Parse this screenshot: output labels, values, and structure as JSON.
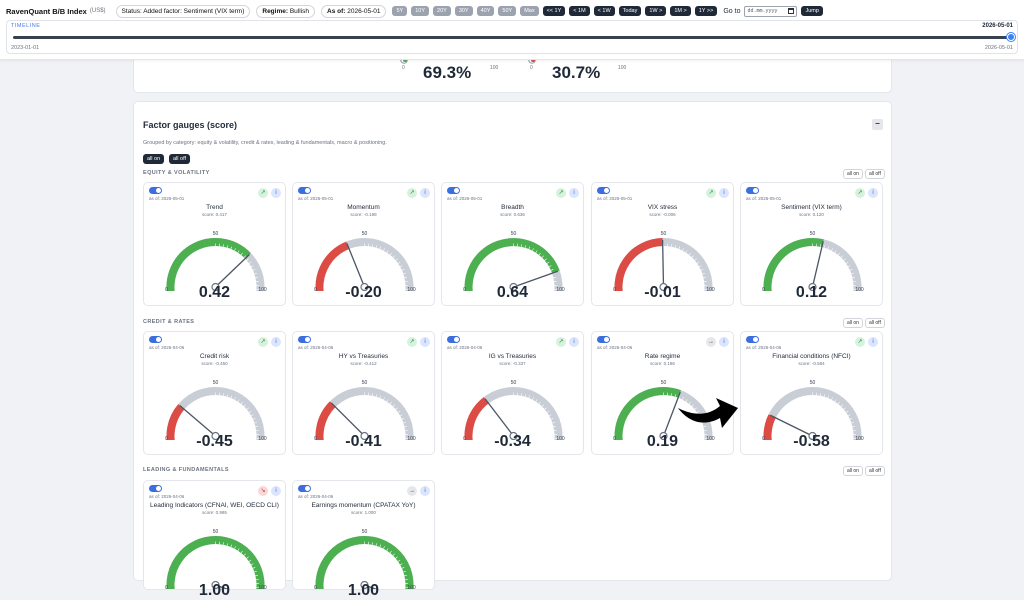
{
  "header": {
    "app_title": "RavenQuant B/B Index",
    "app_sub": "(US$)",
    "status": "Status: Added factor: Sentiment (VIX term)",
    "regime_label": "Regime:",
    "regime_value": "Bullish",
    "asof_label": "As of:",
    "asof_value": "2026-05-01",
    "ranges": [
      "5Y",
      "10Y",
      "20Y",
      "30Y",
      "40Y",
      "50Y",
      "Max"
    ],
    "nav": [
      "<< 1Y",
      "< 1M",
      "< 1W",
      "Today",
      "1W >",
      "1M >",
      "1Y >>"
    ],
    "goto_label": "Go to",
    "date_placeholder": "dd.mm.yyyy",
    "jump_label": "Jump"
  },
  "timeline": {
    "label": "TIMELINE",
    "current": "2026-05-01",
    "min": "2023-01-01",
    "max": "2026-05-01",
    "position": 1.0
  },
  "summary": {
    "left_value": "69.3%",
    "right_value": "30.7%",
    "tick_0": "0",
    "tick_100": "100"
  },
  "factors": {
    "title": "Factor gauges (score)",
    "description": "Grouped by category: equity & volatility, credit & rates, leading & fundamentals, macro & positioning.",
    "all_on": "all on",
    "all_off": "all off",
    "minimize": "−",
    "sections": [
      {
        "name": "EQUITY & VOLATILITY",
        "gauges": [
          {
            "name": "Trend",
            "asof": "as of: 2026-05-01",
            "score": "score: 0.417",
            "value": "0.42",
            "num": 0.42,
            "trend": "up",
            "trend_glyph": "↗"
          },
          {
            "name": "Momentum",
            "asof": "as of: 2026-05-01",
            "score": "score: -0.198",
            "value": "-0.20",
            "num": -0.2,
            "trend": "up",
            "trend_glyph": "↗"
          },
          {
            "name": "Breadth",
            "asof": "as of: 2026-05-01",
            "score": "score: 0.636",
            "value": "0.64",
            "num": 0.64,
            "trend": "up",
            "trend_glyph": "↗"
          },
          {
            "name": "VIX stress",
            "asof": "as of: 2026-05-01",
            "score": "score: -0.006",
            "value": "-0.01",
            "num": -0.01,
            "trend": "up",
            "trend_glyph": "↗"
          },
          {
            "name": "Sentiment (VIX term)",
            "asof": "as of: 2026-05-01",
            "score": "score: 0.120",
            "value": "0.12",
            "num": 0.12,
            "trend": "up",
            "trend_glyph": "↗"
          }
        ]
      },
      {
        "name": "CREDIT & RATES",
        "gauges": [
          {
            "name": "Credit risk",
            "asof": "as of: 2026-04-06",
            "score": "score: -0.450",
            "value": "-0.45",
            "num": -0.45,
            "trend": "up",
            "trend_glyph": "↗"
          },
          {
            "name": "HY vs Treasuries",
            "asof": "as of: 2026-04-06",
            "score": "score: -0.412",
            "value": "-0.41",
            "num": -0.41,
            "trend": "up",
            "trend_glyph": "↗"
          },
          {
            "name": "IG vs Treasuries",
            "asof": "as of: 2026-04-06",
            "score": "score: -0.337",
            "value": "-0.34",
            "num": -0.34,
            "trend": "up",
            "trend_glyph": "↗"
          },
          {
            "name": "Rate regime",
            "asof": "as of: 2026-04-06",
            "score": "score: 0.186",
            "value": "0.19",
            "num": 0.19,
            "trend": "flat",
            "trend_glyph": "→"
          },
          {
            "name": "Financial conditions (NFCI)",
            "asof": "as of: 2026-04-06",
            "score": "score: -0.584",
            "value": "-0.58",
            "num": -0.58,
            "trend": "up",
            "trend_glyph": "↗"
          }
        ]
      },
      {
        "name": "LEADING & FUNDAMENTALS",
        "gauges": [
          {
            "name": "Leading Indicators (CFNAI, WEI, OECD CLI)",
            "asof": "as of: 2026-04-06",
            "score": "score: 0.995",
            "value": "1.00",
            "num": 0.995,
            "trend": "down",
            "trend_glyph": "↘"
          },
          {
            "name": "Earnings momentum (CPATAX YoY)",
            "asof": "as of: 2026-04-06",
            "score": "score: 1.000",
            "value": "1.00",
            "num": 1.0,
            "trend": "flat",
            "trend_glyph": "→"
          }
        ]
      }
    ],
    "gauge_labels": {
      "min": "0",
      "mid": "50",
      "max": "100"
    },
    "info_glyph": "i"
  },
  "colors": {
    "positive": "#4caf50",
    "negative": "#dc4c44",
    "track": "#c9ced6",
    "accent": "#3b6fe0"
  }
}
